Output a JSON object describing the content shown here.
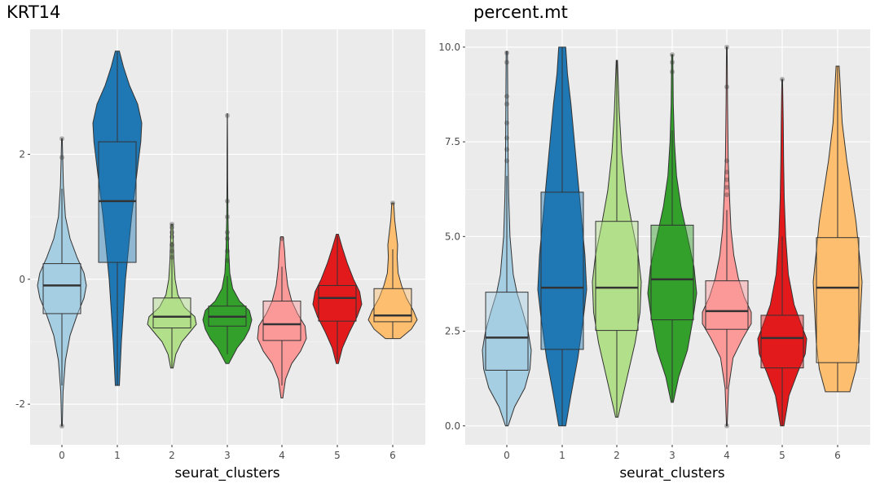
{
  "colors": {
    "panel_bg": "#EBEBEB",
    "grid_major": "#FFFFFF",
    "outline": "#333333",
    "clusters": [
      "#A6CEE3",
      "#1F78B4",
      "#B2DF8A",
      "#33A02C",
      "#FB9A99",
      "#E31A1C",
      "#FDBF6F"
    ]
  },
  "chart_data": [
    {
      "type": "violin",
      "title": "KRT14",
      "xlabel": "seurat_clusters",
      "ylabel": "",
      "categories": [
        "0",
        "1",
        "2",
        "3",
        "4",
        "5",
        "6"
      ],
      "ylim": [
        -2.65,
        4.0
      ],
      "yticks": [
        -2,
        0,
        2
      ],
      "ytick_labels": [
        "-2",
        "0",
        "2"
      ],
      "grid": true,
      "legend": "none",
      "clusters": [
        {
          "cluster": "0",
          "min": -2.35,
          "max": 2.25,
          "q1": -0.55,
          "median": -0.1,
          "q3": 0.25,
          "whisker_low": -1.7,
          "whisker_high": 1.45,
          "outliers": [
            2.25,
            1.95,
            -2.35
          ],
          "density": [
            [
              -2.35,
              0.005
            ],
            [
              -1.8,
              0.02
            ],
            [
              -1.3,
              0.06
            ],
            [
              -0.9,
              0.14
            ],
            [
              -0.55,
              0.27
            ],
            [
              -0.3,
              0.38
            ],
            [
              -0.1,
              0.42
            ],
            [
              0.1,
              0.38
            ],
            [
              0.35,
              0.26
            ],
            [
              0.65,
              0.14
            ],
            [
              1.0,
              0.06
            ],
            [
              1.5,
              0.025
            ],
            [
              2.25,
              0.005
            ]
          ]
        },
        {
          "cluster": "1",
          "min": -1.7,
          "max": 3.65,
          "q1": 0.27,
          "median": 1.25,
          "q3": 2.2,
          "whisker_low": -1.7,
          "whisker_high": 3.65,
          "outliers": [],
          "density": [
            [
              -1.7,
              0.01
            ],
            [
              -1.0,
              0.02
            ],
            [
              -0.5,
              0.03
            ],
            [
              0.0,
              0.04
            ],
            [
              0.5,
              0.055
            ],
            [
              1.0,
              0.07
            ],
            [
              1.4,
              0.085
            ],
            [
              1.8,
              0.1
            ],
            [
              2.2,
              0.115
            ],
            [
              2.5,
              0.12
            ],
            [
              2.8,
              0.1
            ],
            [
              3.1,
              0.06
            ],
            [
              3.4,
              0.03
            ],
            [
              3.65,
              0.01
            ]
          ]
        },
        {
          "cluster": "2",
          "min": -1.42,
          "max": 0.88,
          "q1": -0.78,
          "median": -0.6,
          "q3": -0.3,
          "whisker_low": -1.42,
          "whisker_high": 0.6,
          "outliers": [
            0.88,
            0.83,
            0.75,
            0.68,
            0.55,
            0.45,
            0.35
          ],
          "density": [
            [
              -1.42,
              0.03
            ],
            [
              -1.2,
              0.1
            ],
            [
              -1.0,
              0.25
            ],
            [
              -0.85,
              0.45
            ],
            [
              -0.72,
              0.62
            ],
            [
              -0.6,
              0.58
            ],
            [
              -0.45,
              0.32
            ],
            [
              -0.25,
              0.15
            ],
            [
              0.0,
              0.08
            ],
            [
              0.3,
              0.05
            ],
            [
              0.6,
              0.035
            ],
            [
              0.88,
              0.02
            ]
          ]
        },
        {
          "cluster": "3",
          "min": -1.35,
          "max": 2.65,
          "q1": -0.75,
          "median": -0.6,
          "q3": -0.43,
          "whisker_low": -1.2,
          "whisker_high": 0.05,
          "outliers": [
            2.62,
            1.25,
            1.0,
            0.75,
            0.65,
            0.45,
            0.3
          ],
          "density": [
            [
              -1.35,
              0.06
            ],
            [
              -1.1,
              0.4
            ],
            [
              -0.95,
              0.7
            ],
            [
              -0.8,
              0.9
            ],
            [
              -0.65,
              1.0
            ],
            [
              -0.5,
              0.9
            ],
            [
              -0.35,
              0.5
            ],
            [
              -0.15,
              0.22
            ],
            [
              0.1,
              0.1
            ],
            [
              0.5,
              0.05
            ],
            [
              1.0,
              0.025
            ],
            [
              1.6,
              0.015
            ],
            [
              2.1,
              0.01
            ],
            [
              2.65,
              0.005
            ]
          ]
        },
        {
          "cluster": "4",
          "min": -1.9,
          "max": 0.68,
          "q1": -0.98,
          "median": -0.72,
          "q3": -0.35,
          "whisker_low": -1.7,
          "whisker_high": 0.2,
          "outliers": [
            0.65
          ],
          "density": [
            [
              -1.9,
              0.02
            ],
            [
              -1.6,
              0.08
            ],
            [
              -1.35,
              0.22
            ],
            [
              -1.15,
              0.42
            ],
            [
              -0.95,
              0.55
            ],
            [
              -0.75,
              0.52
            ],
            [
              -0.55,
              0.35
            ],
            [
              -0.35,
              0.22
            ],
            [
              -0.1,
              0.13
            ],
            [
              0.2,
              0.08
            ],
            [
              0.45,
              0.06
            ],
            [
              0.68,
              0.03
            ]
          ]
        },
        {
          "cluster": "5",
          "min": -1.35,
          "max": 0.72,
          "q1": -0.67,
          "median": -0.3,
          "q3": -0.1,
          "whisker_low": -1.3,
          "whisker_high": 0.7,
          "outliers": [],
          "density": [
            [
              -1.35,
              0.03
            ],
            [
              -1.1,
              0.14
            ],
            [
              -0.85,
              0.33
            ],
            [
              -0.6,
              0.55
            ],
            [
              -0.4,
              0.68
            ],
            [
              -0.2,
              0.62
            ],
            [
              0.0,
              0.45
            ],
            [
              0.25,
              0.28
            ],
            [
              0.5,
              0.14
            ],
            [
              0.72,
              0.03
            ]
          ]
        },
        {
          "cluster": "6",
          "min": -0.95,
          "max": 1.22,
          "q1": -0.68,
          "median": -0.58,
          "q3": -0.15,
          "whisker_low": -0.95,
          "whisker_high": 0.48,
          "outliers": [
            1.22
          ],
          "density": [
            [
              -0.95,
              0.15
            ],
            [
              -0.8,
              0.38
            ],
            [
              -0.65,
              0.5
            ],
            [
              -0.5,
              0.42
            ],
            [
              -0.3,
              0.28
            ],
            [
              -0.1,
              0.18
            ],
            [
              0.1,
              0.11
            ],
            [
              0.35,
              0.09
            ],
            [
              0.55,
              0.1
            ],
            [
              0.75,
              0.07
            ],
            [
              0.95,
              0.04
            ],
            [
              1.22,
              0.02
            ]
          ]
        }
      ]
    },
    {
      "type": "violin",
      "title": "percent.mt",
      "xlabel": "seurat_clusters",
      "ylabel": "",
      "categories": [
        "0",
        "1",
        "2",
        "3",
        "4",
        "5",
        "6"
      ],
      "ylim": [
        -0.5,
        10.47
      ],
      "yticks": [
        0,
        2.5,
        5,
        7.5,
        10
      ],
      "ytick_labels": [
        "0.0",
        "2.5",
        "5.0",
        "7.5",
        "10.0"
      ],
      "grid": true,
      "legend": "none",
      "clusters": [
        {
          "cluster": "0",
          "min": 0.0,
          "max": 9.88,
          "q1": 1.47,
          "median": 2.33,
          "q3": 3.53,
          "whisker_low": 0.0,
          "whisker_high": 6.6,
          "outliers": [
            9.85,
            9.6,
            8.7,
            8.5,
            8.0,
            7.6,
            7.3,
            7.0
          ],
          "density": [
            [
              0.0,
              0.02
            ],
            [
              0.5,
              0.12
            ],
            [
              1.0,
              0.28
            ],
            [
              1.5,
              0.36
            ],
            [
              2.0,
              0.38
            ],
            [
              2.5,
              0.33
            ],
            [
              3.0,
              0.25
            ],
            [
              3.5,
              0.16
            ],
            [
              4.0,
              0.1
            ],
            [
              5.0,
              0.05
            ],
            [
              6.0,
              0.03
            ],
            [
              7.0,
              0.02
            ],
            [
              8.5,
              0.015
            ],
            [
              9.88,
              0.01
            ]
          ]
        },
        {
          "cluster": "1",
          "min": 0.0,
          "max": 10.0,
          "q1": 2.02,
          "median": 3.65,
          "q3": 6.17,
          "whisker_low": 0.0,
          "whisker_high": 10.0,
          "outliers": [],
          "density": [
            [
              0.0,
              0.02
            ],
            [
              0.8,
              0.05
            ],
            [
              1.8,
              0.09
            ],
            [
              2.8,
              0.12
            ],
            [
              3.6,
              0.14
            ],
            [
              4.5,
              0.13
            ],
            [
              5.5,
              0.11
            ],
            [
              6.5,
              0.09
            ],
            [
              7.5,
              0.07
            ],
            [
              8.5,
              0.05
            ],
            [
              9.3,
              0.03
            ],
            [
              10.0,
              0.02
            ]
          ]
        },
        {
          "cluster": "2",
          "min": 0.23,
          "max": 9.65,
          "q1": 2.52,
          "median": 3.65,
          "q3": 5.4,
          "whisker_low": 0.23,
          "whisker_high": 9.65,
          "outliers": [],
          "density": [
            [
              0.23,
              0.02
            ],
            [
              0.8,
              0.1
            ],
            [
              1.5,
              0.2
            ],
            [
              2.2,
              0.3
            ],
            [
              3.0,
              0.38
            ],
            [
              3.8,
              0.4
            ],
            [
              4.5,
              0.35
            ],
            [
              5.3,
              0.25
            ],
            [
              6.2,
              0.15
            ],
            [
              7.2,
              0.08
            ],
            [
              8.3,
              0.04
            ],
            [
              9.65,
              0.01
            ]
          ]
        },
        {
          "cluster": "3",
          "min": 0.62,
          "max": 9.8,
          "q1": 2.8,
          "median": 3.87,
          "q3": 5.3,
          "whisker_low": 0.62,
          "whisker_high": 7.8,
          "outliers": [
            9.8,
            9.6,
            9.35
          ],
          "density": [
            [
              0.62,
              0.02
            ],
            [
              1.3,
              0.12
            ],
            [
              2.0,
              0.28
            ],
            [
              2.8,
              0.38
            ],
            [
              3.5,
              0.45
            ],
            [
              4.2,
              0.4
            ],
            [
              5.0,
              0.28
            ],
            [
              5.8,
              0.16
            ],
            [
              6.6,
              0.08
            ],
            [
              7.5,
              0.04
            ],
            [
              8.5,
              0.02
            ],
            [
              9.8,
              0.01
            ]
          ]
        },
        {
          "cluster": "4",
          "min": 0.0,
          "max": 10.0,
          "q1": 2.55,
          "median": 3.03,
          "q3": 3.83,
          "whisker_low": 0.97,
          "whisker_high": 5.7,
          "outliers": [
            10.0,
            8.95,
            7.0,
            6.7,
            6.5,
            6.3,
            6.1,
            0.0
          ],
          "density": [
            [
              0.0,
              0.01
            ],
            [
              1.0,
              0.05
            ],
            [
              1.8,
              0.18
            ],
            [
              2.3,
              0.45
            ],
            [
              2.7,
              0.7
            ],
            [
              3.0,
              0.7
            ],
            [
              3.4,
              0.5
            ],
            [
              3.9,
              0.33
            ],
            [
              4.5,
              0.2
            ],
            [
              5.2,
              0.12
            ],
            [
              6.0,
              0.08
            ],
            [
              7.0,
              0.04
            ],
            [
              8.5,
              0.02
            ],
            [
              10.0,
              0.01
            ]
          ]
        },
        {
          "cluster": "5",
          "min": 0.0,
          "max": 9.15,
          "q1": 1.53,
          "median": 2.32,
          "q3": 2.92,
          "whisker_low": 0.0,
          "whisker_high": 5.0,
          "outliers": [
            9.15
          ],
          "density": [
            [
              0.0,
              0.05
            ],
            [
              0.8,
              0.2
            ],
            [
              1.4,
              0.45
            ],
            [
              1.9,
              0.68
            ],
            [
              2.3,
              0.72
            ],
            [
              2.7,
              0.55
            ],
            [
              3.2,
              0.35
            ],
            [
              4.0,
              0.18
            ],
            [
              5.0,
              0.1
            ],
            [
              6.0,
              0.06
            ],
            [
              7.0,
              0.04
            ],
            [
              8.0,
              0.03
            ],
            [
              9.15,
              0.01
            ]
          ]
        },
        {
          "cluster": "6",
          "min": 0.9,
          "max": 9.5,
          "q1": 1.67,
          "median": 3.65,
          "q3": 4.97,
          "whisker_low": 0.9,
          "whisker_high": 9.5,
          "outliers": [],
          "density": [
            [
              0.9,
              0.08
            ],
            [
              1.5,
              0.12
            ],
            [
              2.2,
              0.14
            ],
            [
              3.0,
              0.15
            ],
            [
              3.8,
              0.16
            ],
            [
              4.6,
              0.14
            ],
            [
              5.4,
              0.12
            ],
            [
              6.2,
              0.09
            ],
            [
              7.0,
              0.06
            ],
            [
              8.0,
              0.03
            ],
            [
              9.5,
              0.01
            ]
          ]
        }
      ]
    }
  ]
}
